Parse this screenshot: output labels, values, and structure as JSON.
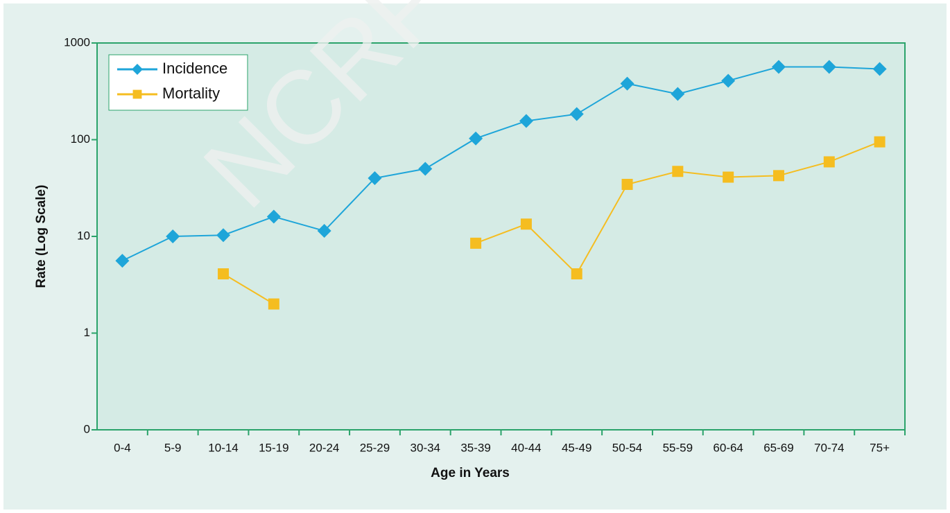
{
  "chart_data": {
    "type": "line",
    "watermark": "NCRP",
    "x_label": "Age in Years",
    "y_label": "Rate (Log Scale)",
    "categories": [
      "0-4",
      "5-9",
      "10-14",
      "15-19",
      "20-24",
      "25-29",
      "30-34",
      "35-39",
      "40-44",
      "45-49",
      "50-54",
      "55-59",
      "60-64",
      "65-69",
      "70-74",
      "75+"
    ],
    "series": [
      {
        "name": "Incidence",
        "color": "#1ea5d9",
        "marker": "diamond",
        "values": [
          5.6,
          10,
          10.3,
          16,
          11.4,
          40,
          50,
          103,
          156,
          184,
          380,
          297,
          407,
          566,
          566,
          538
        ]
      },
      {
        "name": "Mortality",
        "color": "#f5bd20",
        "marker": "square",
        "values": [
          null,
          null,
          4.1,
          2.0,
          null,
          null,
          null,
          8.5,
          13.4,
          4.1,
          34.5,
          47,
          41,
          42.5,
          59,
          95
        ]
      }
    ],
    "log_scale": true,
    "ylim": [
      0.1,
      1000
    ],
    "yticks": [
      {
        "value": 0.1,
        "label": "0"
      },
      1,
      10,
      100,
      1000
    ],
    "legend": "upper left"
  }
}
